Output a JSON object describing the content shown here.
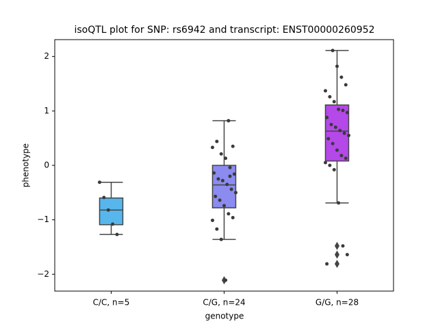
{
  "chart_data": {
    "type": "box",
    "title": "isoQTL plot for SNP: rs6942 and transcript: ENST00000260952",
    "x_label": "genotype",
    "y_label": "phenotype",
    "categories": [
      "C/C, n=5",
      "C/G, n=24",
      "G/G, n=28"
    ],
    "boxes": [
      {
        "q1": -1.09,
        "median": -0.82,
        "q3": -0.6,
        "whislo": -1.27,
        "whishi": -0.31,
        "fliers": [],
        "color": "#57b6ec"
      },
      {
        "q1": -0.78,
        "median": -0.36,
        "q3": 0.0,
        "whislo": -1.36,
        "whishi": 0.82,
        "fliers": [
          -2.11
        ],
        "color": "#8b8bf0"
      },
      {
        "q1": 0.08,
        "median": 0.63,
        "q3": 1.11,
        "whislo": -0.69,
        "whishi": 2.11,
        "fliers": [
          -1.48,
          -1.64,
          -1.81
        ],
        "color": "#b448e8"
      }
    ],
    "points": [
      [
        -0.31,
        -0.59,
        -0.82,
        -1.08,
        -1.27
      ],
      [
        0.82,
        0.35,
        0.33,
        0.44,
        0.21,
        0.13,
        -0.04,
        -0.16,
        -0.14,
        -0.25,
        -0.28,
        -0.35,
        -0.44,
        -0.5,
        -0.57,
        -0.64,
        -0.74,
        -0.89,
        -0.96,
        -1.01,
        -1.17,
        -1.36,
        -2.11,
        -0.2
      ],
      [
        2.11,
        1.82,
        1.62,
        1.48,
        1.37,
        1.26,
        1.17,
        1.03,
        1.01,
        0.97,
        0.88,
        0.75,
        0.7,
        0.64,
        0.59,
        0.55,
        0.49,
        0.4,
        0.28,
        0.18,
        0.13,
        0.05,
        0.0,
        -0.08,
        -0.69,
        -1.48,
        -1.64,
        -1.81
      ]
    ],
    "point_color": "#3a3a3a",
    "ylim": [
      -2.31,
      2.31
    ],
    "yticks": [
      {
        "value": -2,
        "label": "−2"
      },
      {
        "value": -1,
        "label": "−1"
      },
      0,
      1,
      2
    ]
  }
}
